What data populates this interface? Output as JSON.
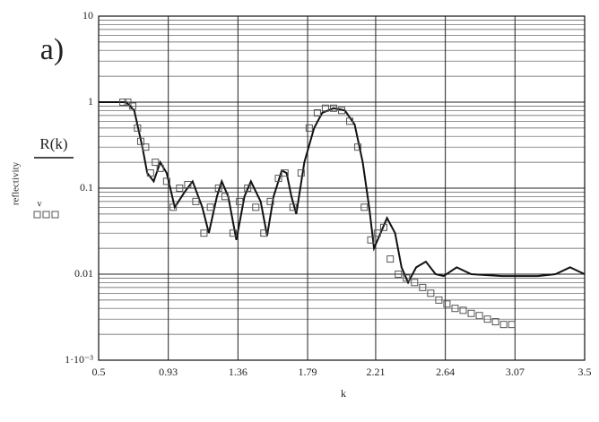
{
  "chart_data": {
    "type": "line",
    "panel_label": "a)",
    "x_label": "k",
    "y_label": "reflectivity",
    "xlim": [
      0.5,
      3.5
    ],
    "xticks": [
      0.5,
      0.93,
      1.36,
      1.79,
      2.21,
      2.64,
      3.07,
      3.5
    ],
    "ylim": [
      0.001,
      10
    ],
    "yticks": [
      {
        "value": 0.001,
        "label": "1·10⁻³"
      },
      0.01,
      0.1,
      1,
      10
    ],
    "log_y": true,
    "grid": true,
    "series": [
      {
        "name": "R(k)",
        "color": "#111111",
        "style": "line",
        "x": [
          0.5,
          0.67,
          0.72,
          0.77,
          0.8,
          0.84,
          0.88,
          0.92,
          0.97,
          1.03,
          1.08,
          1.14,
          1.18,
          1.23,
          1.26,
          1.3,
          1.35,
          1.4,
          1.44,
          1.5,
          1.54,
          1.58,
          1.63,
          1.66,
          1.69,
          1.72,
          1.77,
          1.83,
          1.88,
          1.95,
          2.02,
          2.08,
          2.13,
          2.17,
          2.2,
          2.24,
          2.28,
          2.33,
          2.37,
          2.41,
          2.46,
          2.52,
          2.58,
          2.63,
          2.71,
          2.8,
          2.99,
          3.21,
          3.32,
          3.41,
          3.5
        ],
        "values": [
          1,
          1,
          0.8,
          0.3,
          0.15,
          0.12,
          0.2,
          0.15,
          0.06,
          0.09,
          0.12,
          0.06,
          0.03,
          0.08,
          0.12,
          0.08,
          0.025,
          0.08,
          0.12,
          0.07,
          0.028,
          0.08,
          0.16,
          0.15,
          0.08,
          0.05,
          0.2,
          0.5,
          0.75,
          0.85,
          0.8,
          0.55,
          0.2,
          0.06,
          0.02,
          0.03,
          0.045,
          0.03,
          0.012,
          0.008,
          0.012,
          0.014,
          0.01,
          0.0095,
          0.012,
          0.01,
          0.0095,
          0.0095,
          0.01,
          0.012,
          0.01
        ]
      },
      {
        "name": "v",
        "color": "#555555",
        "style": "markers",
        "x": [
          0.65,
          0.68,
          0.71,
          0.74,
          0.76,
          0.79,
          0.82,
          0.85,
          0.88,
          0.92,
          0.96,
          1.0,
          1.05,
          1.1,
          1.15,
          1.19,
          1.24,
          1.28,
          1.33,
          1.37,
          1.42,
          1.47,
          1.52,
          1.56,
          1.61,
          1.65,
          1.7,
          1.75,
          1.8,
          1.85,
          1.9,
          1.95,
          2.0,
          2.05,
          2.1,
          2.14,
          2.18,
          2.22,
          2.26,
          2.3,
          2.35,
          2.4,
          2.45,
          2.5,
          2.55,
          2.6,
          2.65,
          2.7,
          2.75,
          2.8,
          2.85,
          2.9,
          2.95,
          3.0,
          3.05
        ],
        "values": [
          1,
          1,
          0.9,
          0.5,
          0.35,
          0.3,
          0.15,
          0.2,
          0.17,
          0.12,
          0.06,
          0.1,
          0.11,
          0.07,
          0.03,
          0.06,
          0.1,
          0.08,
          0.03,
          0.07,
          0.1,
          0.06,
          0.03,
          0.07,
          0.13,
          0.15,
          0.06,
          0.15,
          0.5,
          0.75,
          0.85,
          0.85,
          0.8,
          0.6,
          0.3,
          0.06,
          0.025,
          0.03,
          0.035,
          0.015,
          0.01,
          0.009,
          0.008,
          0.007,
          0.006,
          0.005,
          0.0045,
          0.004,
          0.0038,
          0.0035,
          0.0033,
          0.003,
          0.0028,
          0.0026,
          0.0026
        ]
      }
    ]
  }
}
